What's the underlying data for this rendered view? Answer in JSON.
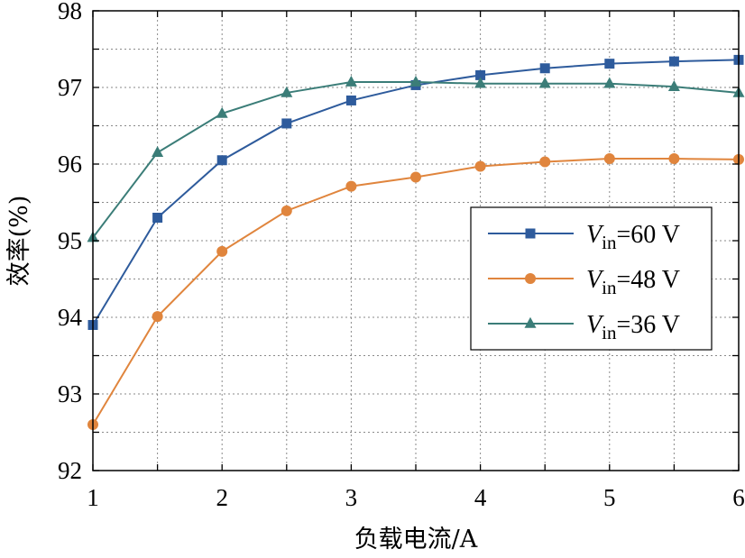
{
  "chart_data": {
    "type": "line",
    "title": "",
    "xlabel": "负载电流/A",
    "ylabel": "效率(%)",
    "xlim": [
      1,
      6
    ],
    "ylim": [
      92,
      98
    ],
    "xticks": [
      1,
      2,
      3,
      4,
      5,
      6
    ],
    "yticks": [
      92,
      93,
      94,
      95,
      96,
      97,
      98
    ],
    "grid": true,
    "legend_position": "center-right",
    "series": [
      {
        "name": "Vin=60 V",
        "name_prefix": "V",
        "name_sub": "in",
        "name_suffix": "=60 V",
        "color": "#2e5b9c",
        "marker": "square",
        "x": [
          1,
          1.5,
          2,
          2.5,
          3,
          3.5,
          4,
          4.5,
          5,
          5.5,
          6
        ],
        "values": [
          93.9,
          95.3,
          96.05,
          96.53,
          96.83,
          97.03,
          97.16,
          97.25,
          97.31,
          97.34,
          97.36
        ]
      },
      {
        "name": "Vin=48 V",
        "name_prefix": "V",
        "name_sub": "in",
        "name_suffix": "=48 V",
        "color": "#e0853d",
        "marker": "circle",
        "x": [
          1,
          1.5,
          2,
          2.5,
          3,
          3.5,
          4,
          4.5,
          5,
          5.5,
          6
        ],
        "values": [
          92.6,
          94.01,
          94.86,
          95.39,
          95.71,
          95.83,
          95.97,
          96.03,
          96.07,
          96.07,
          96.06
        ]
      },
      {
        "name": "Vin=36 V",
        "name_prefix": "V",
        "name_sub": "in",
        "name_suffix": "=36 V",
        "color": "#3b7d78",
        "marker": "triangle",
        "x": [
          1,
          1.5,
          2,
          2.5,
          3,
          3.5,
          4,
          4.5,
          5,
          5.5,
          6
        ],
        "values": [
          95.04,
          96.15,
          96.66,
          96.93,
          97.07,
          97.07,
          97.05,
          97.05,
          97.05,
          97.01,
          96.93
        ]
      }
    ]
  }
}
